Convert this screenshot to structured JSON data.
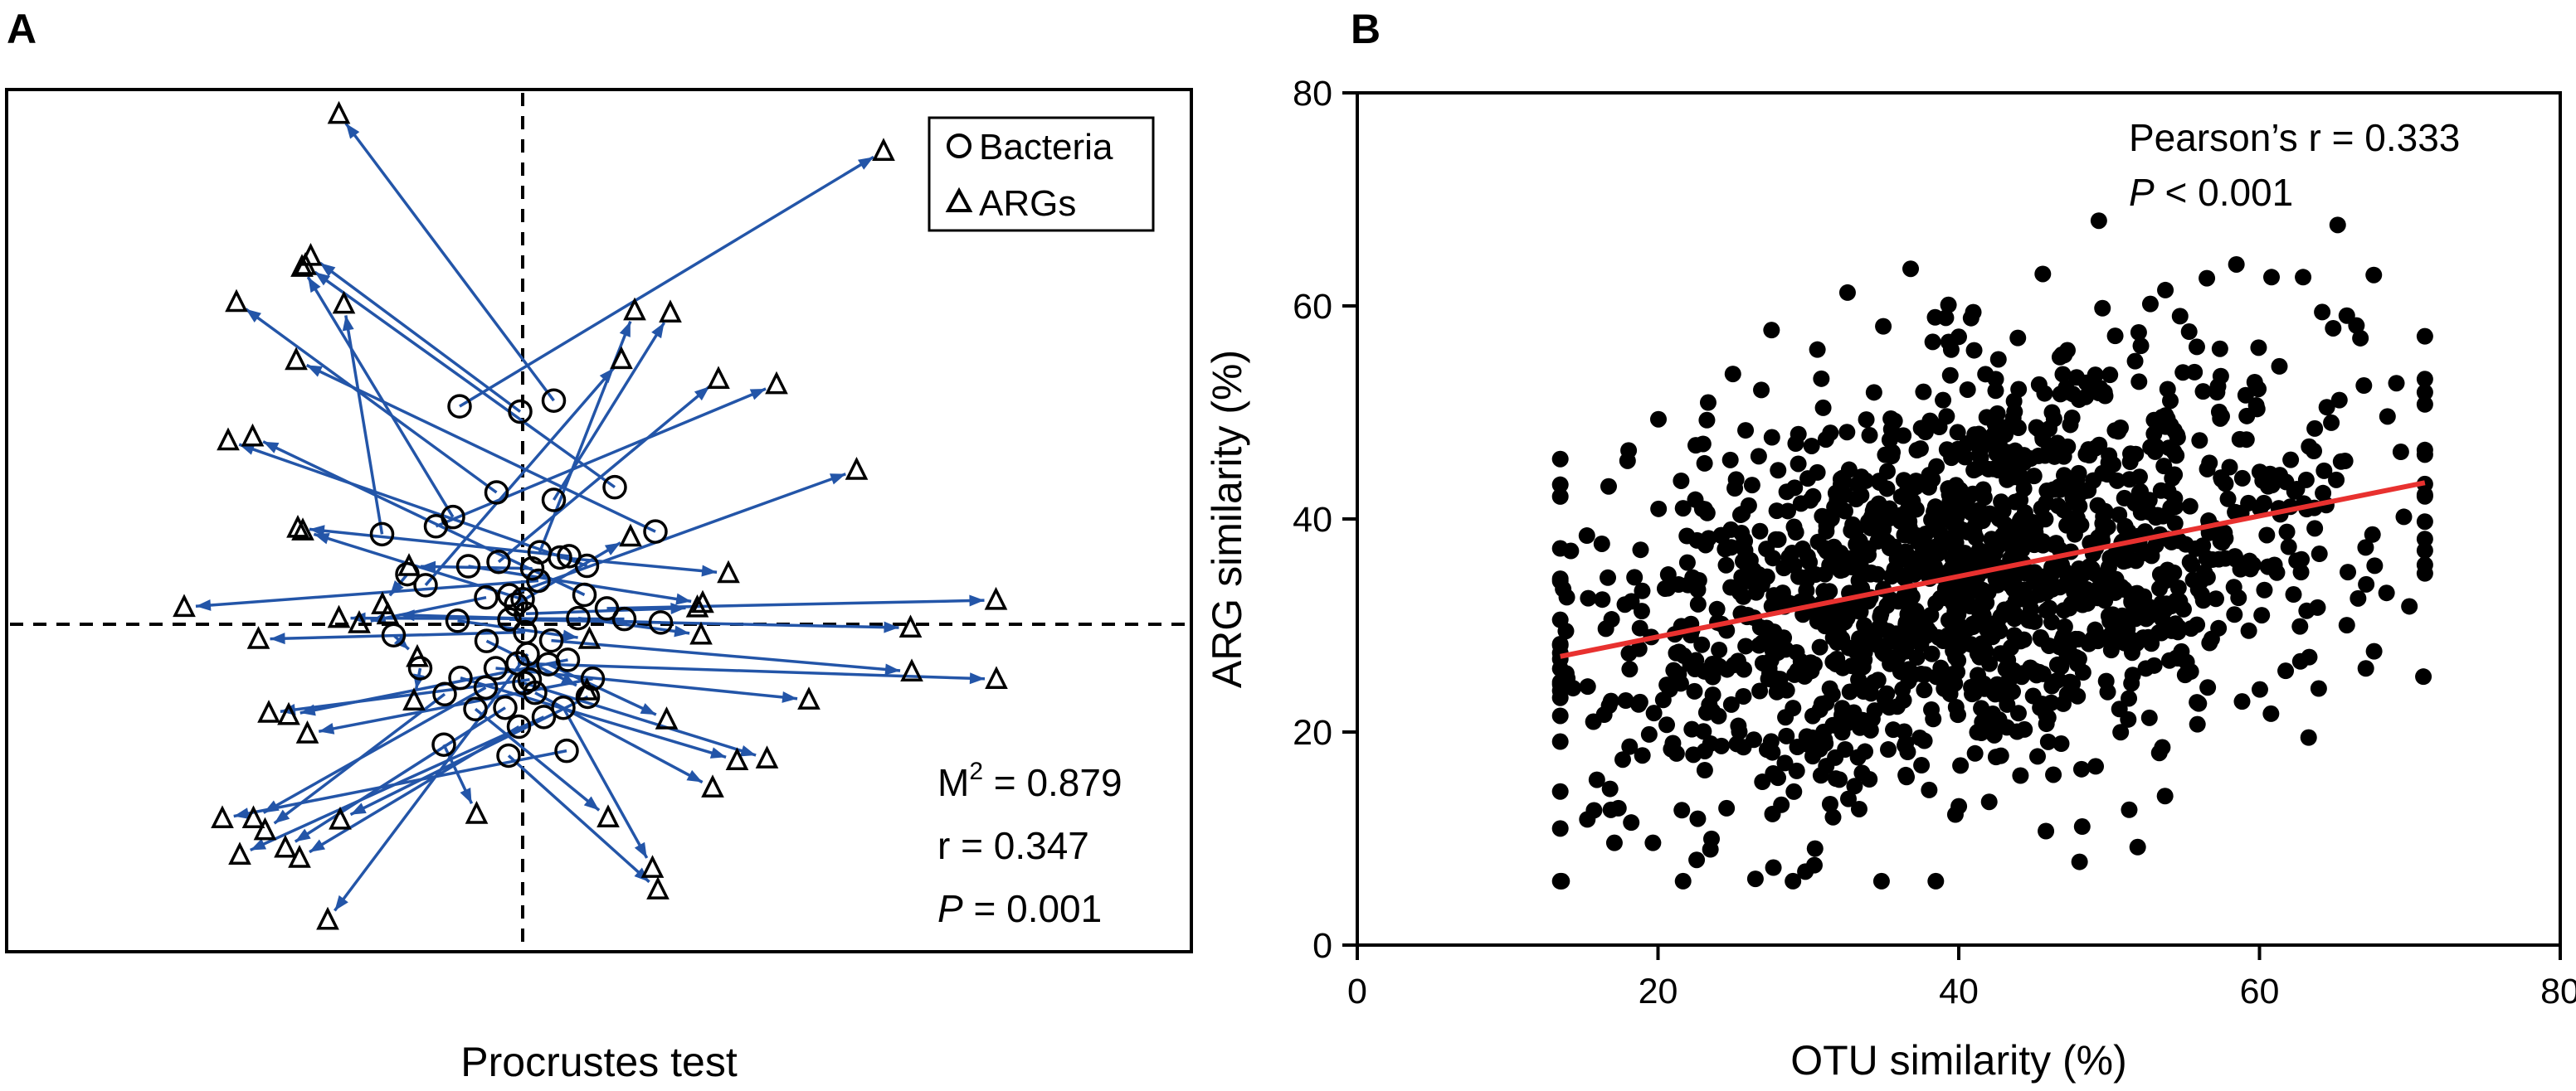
{
  "panels": {
    "a": {
      "label": "A"
    },
    "b": {
      "label": "B"
    }
  },
  "colors": {
    "arrow": "#2355a8",
    "point": "#000000",
    "fit_line": "#e8312f"
  },
  "chart_data": [
    {
      "type": "scatter",
      "subtype": "procrustes",
      "title": "",
      "xlabel": "Procrustes test",
      "ylabel": "",
      "xlim": [
        -1,
        1
      ],
      "ylim": [
        -1,
        1
      ],
      "reference_lines": {
        "x": 0,
        "y": 0
      },
      "legend": {
        "placement": "top-right",
        "entries": [
          {
            "name": "Bacteria",
            "marker": "circle"
          },
          {
            "name": "ARGs",
            "marker": "triangle"
          }
        ]
      },
      "stats": {
        "m2_prefix": "M",
        "m2_exponent": "2",
        "m2_value": " = 0.879",
        "r_text": "r = 0.347",
        "p_letter": "P",
        "p_value": " = 0.001"
      },
      "pairs": [
        {
          "bacteria": [
            0.075,
            0.509
          ],
          "arg": [
            -0.443,
            1.161
          ]
        },
        {
          "bacteria": [
            -0.152,
            0.496
          ],
          "arg": [
            0.87,
            1.077
          ]
        },
        {
          "bacteria": [
            -0.006,
            0.484
          ],
          "arg": [
            -0.511,
            0.838
          ]
        },
        {
          "bacteria": [
            0.075,
            0.283
          ],
          "arg": [
            0.356,
            0.709
          ]
        },
        {
          "bacteria": [
            -0.063,
            0.3
          ],
          "arg": [
            -0.69,
            0.733
          ]
        },
        {
          "bacteria": [
            -0.168,
            0.244
          ],
          "arg": [
            -0.532,
            0.813
          ]
        },
        {
          "bacteria": [
            -0.209,
            0.223
          ],
          "arg": [
            0.612,
            0.546
          ]
        },
        {
          "bacteria": [
            0.222,
            0.312
          ],
          "arg": [
            -0.524,
            0.817
          ]
        },
        {
          "bacteria": [
            0.041,
            0.164
          ],
          "arg": [
            0.27,
            0.714
          ]
        },
        {
          "bacteria": [
            -0.339,
            0.205
          ],
          "arg": [
            -0.431,
            0.729
          ]
        },
        {
          "bacteria": [
            0.32,
            0.211
          ],
          "arg": [
            -0.546,
            0.601
          ]
        },
        {
          "bacteria": [
            -0.058,
            0.142
          ],
          "arg": [
            0.472,
            0.558
          ]
        },
        {
          "bacteria": [
            0.155,
            0.133
          ],
          "arg": [
            -0.71,
            0.418
          ]
        },
        {
          "bacteria": [
            -0.234,
            0.089
          ],
          "arg": [
            0.238,
            0.603
          ]
        },
        {
          "bacteria": [
            0.149,
            0.067
          ],
          "arg": [
            -0.651,
            0.427
          ]
        },
        {
          "bacteria": [
            0.112,
            0.155
          ],
          "arg": [
            -0.542,
            0.219
          ]
        },
        {
          "bacteria": [
            -0.032,
            0.066
          ],
          "arg": [
            0.805,
            0.351
          ]
        },
        {
          "bacteria": [
            0.0,
            0.057
          ],
          "arg": [
            -0.53,
            0.213
          ]
        },
        {
          "bacteria": [
            0.09,
            0.152
          ],
          "arg": [
            0.496,
            0.116
          ]
        },
        {
          "bacteria": [
            0.023,
            0.127
          ],
          "arg": [
            -0.274,
            0.132
          ]
        },
        {
          "bacteria": [
            -0.131,
            0.132
          ],
          "arg": [
            0.434,
            0.048
          ]
        },
        {
          "bacteria": [
            0.038,
            0.099
          ],
          "arg": [
            -0.816,
            0.039
          ]
        },
        {
          "bacteria": [
            -0.016,
            0.045
          ],
          "arg": [
            0.26,
            0.199
          ]
        },
        {
          "bacteria": [
            0.203,
            0.036
          ],
          "arg": [
            1.141,
            0.055
          ]
        },
        {
          "bacteria": [
            -0.278,
            0.114
          ],
          "arg": [
            -0.338,
            0.045
          ]
        },
        {
          "bacteria": [
            0.245,
            0.012
          ],
          "arg": [
            -0.443,
            0.014
          ]
        },
        {
          "bacteria": [
            0.008,
            0.024
          ],
          "arg": [
            0.421,
            0.038
          ]
        },
        {
          "bacteria": [
            -0.088,
            0.061
          ],
          "arg": [
            -0.394,
            0.002
          ]
        },
        {
          "bacteria": [
            0.333,
            0.004
          ],
          "arg": [
            -0.325,
            0.022
          ]
        },
        {
          "bacteria": [
            -0.032,
            0.011
          ],
          "arg": [
            0.935,
            -0.008
          ]
        },
        {
          "bacteria": [
            -0.157,
            0.008
          ],
          "arg": [
            0.161,
            -0.034
          ]
        },
        {
          "bacteria": [
            0.134,
            0.014
          ],
          "arg": [
            0.43,
            -0.024
          ]
        },
        {
          "bacteria": [
            0.006,
            -0.018
          ],
          "arg": [
            -0.637,
            -0.034
          ]
        },
        {
          "bacteria": [
            -0.311,
            -0.025
          ],
          "arg": [
            -0.254,
            -0.075
          ]
        },
        {
          "bacteria": [
            -0.087,
            -0.038
          ],
          "arg": [
            0.155,
            -0.151
          ]
        },
        {
          "bacteria": [
            0.069,
            -0.037
          ],
          "arg": [
            0.938,
            -0.108
          ]
        },
        {
          "bacteria": [
            0.109,
            -0.081
          ],
          "arg": [
            -0.564,
            -0.207
          ]
        },
        {
          "bacteria": [
            -0.012,
            -0.089
          ],
          "arg": [
            1.142,
            -0.125
          ]
        },
        {
          "bacteria": [
            0.017,
            -0.126
          ],
          "arg": [
            -0.612,
            -0.202
          ]
        },
        {
          "bacteria": [
            -0.247,
            -0.1
          ],
          "arg": [
            -0.262,
            -0.174
          ]
        },
        {
          "bacteria": [
            0.062,
            -0.091
          ],
          "arg": [
            0.347,
            -0.217
          ]
        },
        {
          "bacteria": [
            -0.065,
            -0.1
          ],
          "arg": [
            0.69,
            -0.172
          ]
        },
        {
          "bacteria": [
            0.169,
            -0.124
          ],
          "arg": [
            -0.519,
            -0.249
          ]
        },
        {
          "bacteria": [
            -0.15,
            -0.122
          ],
          "arg": [
            0.517,
            -0.31
          ]
        },
        {
          "bacteria": [
            0.004,
            -0.134
          ],
          "arg": [
            0.589,
            -0.306
          ]
        },
        {
          "bacteria": [
            -0.089,
            -0.144
          ],
          "arg": [
            -0.649,
            -0.442
          ]
        },
        {
          "bacteria": [
            0.03,
            -0.156
          ],
          "arg": [
            0.458,
            -0.372
          ]
        },
        {
          "bacteria": [
            -0.188,
            -0.159
          ],
          "arg": [
            -0.621,
            -0.469
          ]
        },
        {
          "bacteria": [
            0.157,
            -0.165
          ],
          "arg": [
            -0.44,
            -0.445
          ]
        },
        {
          "bacteria": [
            -0.042,
            -0.19
          ],
          "arg": [
            -0.572,
            -0.509
          ]
        },
        {
          "bacteria": [
            0.098,
            -0.19
          ],
          "arg": [
            0.313,
            -0.555
          ]
        },
        {
          "bacteria": [
            -0.114,
            -0.193
          ],
          "arg": [
            0.206,
            -0.44
          ]
        },
        {
          "bacteria": [
            0.051,
            -0.211
          ],
          "arg": [
            -0.682,
            -0.525
          ]
        },
        {
          "bacteria": [
            -0.009,
            -0.233
          ],
          "arg": [
            -0.538,
            -0.532
          ]
        },
        {
          "bacteria": [
            -0.19,
            -0.274
          ],
          "arg": [
            -0.111,
            -0.432
          ]
        },
        {
          "bacteria": [
            0.106,
            -0.288
          ],
          "arg": [
            -0.724,
            -0.442
          ]
        },
        {
          "bacteria": [
            -0.034,
            -0.299
          ],
          "arg": [
            0.326,
            -0.604
          ]
        },
        {
          "bacteria": [
            0.012,
            -0.068
          ],
          "arg": [
            -0.47,
            -0.673
          ]
        }
      ]
    },
    {
      "type": "scatter",
      "title": "",
      "xlabel": "OTU similarity (%)",
      "ylabel": "ARG similarity (%)",
      "xlim": [
        0,
        80
      ],
      "ylim": [
        0,
        80
      ],
      "xticks": [
        "0",
        "20",
        "40",
        "60",
        "80"
      ],
      "yticks": [
        "0",
        "20",
        "40",
        "60",
        "80"
      ],
      "annotation": {
        "pearson_text": "Pearson’s r = 0.333",
        "p_letter": "P",
        "p_value": " < 0.001"
      },
      "fit_line": {
        "x": [
          13.5,
          71.0
        ],
        "y": [
          27.1,
          43.4
        ]
      },
      "sample_count_note": "dense cloud of pairwise similarities, approximately 1,500 points",
      "distribution": {
        "x_mean": 41,
        "x_sd": 12.5,
        "x_range": [
          13.5,
          71
        ],
        "slope": 0.283,
        "intercept": 23.3,
        "y_residual_sd": 9.5,
        "y_range": [
          6,
          68
        ]
      },
      "highlight_points": [
        {
          "x": 65.2,
          "y": 67.6
        },
        {
          "x": 67.6,
          "y": 62.9
        },
        {
          "x": 62.9,
          "y": 62.7
        },
        {
          "x": 70.9,
          "y": 25.2
        },
        {
          "x": 69.4,
          "y": 46.3
        },
        {
          "x": 69.6,
          "y": 40.2
        },
        {
          "x": 29.8,
          "y": 6.9
        },
        {
          "x": 30.4,
          "y": 7.5
        },
        {
          "x": 51.9,
          "y": 9.2
        },
        {
          "x": 14.2,
          "y": 37.0
        },
        {
          "x": 13.9,
          "y": 25.5
        },
        {
          "x": 15.3,
          "y": 11.8
        },
        {
          "x": 17.1,
          "y": 9.6
        },
        {
          "x": 40.0,
          "y": 57.1
        },
        {
          "x": 30.6,
          "y": 55.9
        },
        {
          "x": 56.5,
          "y": 62.6
        },
        {
          "x": 60.8,
          "y": 62.7
        },
        {
          "x": 64.9,
          "y": 57.9
        }
      ]
    }
  ]
}
